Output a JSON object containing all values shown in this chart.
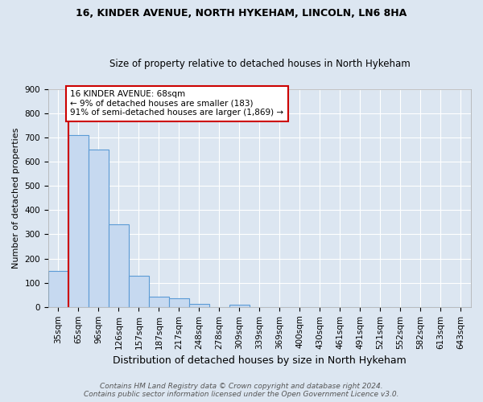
{
  "title1": "16, KINDER AVENUE, NORTH HYKEHAM, LINCOLN, LN6 8HA",
  "title2": "Size of property relative to detached houses in North Hykeham",
  "xlabel": "Distribution of detached houses by size in North Hykeham",
  "ylabel": "Number of detached properties",
  "footer1": "Contains HM Land Registry data © Crown copyright and database right 2024.",
  "footer2": "Contains public sector information licensed under the Open Government Licence v3.0.",
  "categories": [
    "35sqm",
    "65sqm",
    "96sqm",
    "126sqm",
    "157sqm",
    "187sqm",
    "217sqm",
    "248sqm",
    "278sqm",
    "309sqm",
    "339sqm",
    "369sqm",
    "400sqm",
    "430sqm",
    "461sqm",
    "491sqm",
    "521sqm",
    "552sqm",
    "582sqm",
    "613sqm",
    "643sqm"
  ],
  "values": [
    150,
    710,
    650,
    340,
    128,
    42,
    35,
    12,
    0,
    10,
    0,
    0,
    0,
    0,
    0,
    0,
    0,
    0,
    0,
    0,
    0
  ],
  "bar_color": "#c6d9f0",
  "bar_edge_color": "#5b9bd5",
  "red_line_x": 1.0,
  "annotation_title": "16 KINDER AVENUE: 68sqm",
  "annotation_line1": "← 9% of detached houses are smaller (183)",
  "annotation_line2": "91% of semi-detached houses are larger (1,869) →",
  "annotation_box_facecolor": "#ffffff",
  "annotation_box_edgecolor": "#cc0000",
  "red_line_color": "#cc0000",
  "ylim": [
    0,
    900
  ],
  "yticks": [
    0,
    100,
    200,
    300,
    400,
    500,
    600,
    700,
    800,
    900
  ],
  "background_color": "#dce6f1",
  "plot_bg_color": "#dce6f1",
  "grid_color": "#ffffff",
  "title1_fontsize": 9,
  "title2_fontsize": 8.5,
  "ylabel_fontsize": 8,
  "xlabel_fontsize": 9,
  "tick_fontsize": 7.5,
  "footer_fontsize": 6.5
}
